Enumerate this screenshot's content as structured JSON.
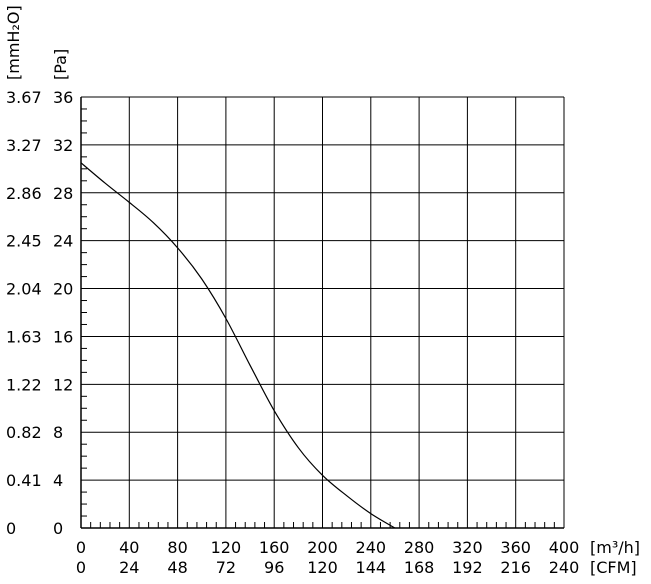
{
  "chart_data": {
    "type": "line",
    "title": "",
    "x_axes": [
      {
        "name": "flow-m3h",
        "unit_label": "[m³/h]",
        "range": [
          0,
          400
        ],
        "ticks": [
          "0",
          "40",
          "80",
          "120",
          "160",
          "200",
          "240",
          "280",
          "320",
          "360",
          "400"
        ]
      },
      {
        "name": "flow-cfm",
        "unit_label": "[CFM]",
        "range": [
          0,
          240
        ],
        "ticks": [
          "0",
          "24",
          "48",
          "72",
          "96",
          "120",
          "144",
          "168",
          "192",
          "216",
          "240"
        ]
      }
    ],
    "y_axes": [
      {
        "name": "pressure-mmh2o",
        "unit_label": "[mmH₂O]",
        "range": [
          0,
          3.67
        ],
        "ticks": [
          "0",
          "0.41",
          "0.82",
          "1.22",
          "1.63",
          "2.04",
          "2.45",
          "2.86",
          "3.27",
          "3.67"
        ]
      },
      {
        "name": "pressure-pa",
        "unit_label": "[Pa]",
        "range": [
          0,
          36
        ],
        "ticks": [
          "0",
          "4",
          "8",
          "12",
          "16",
          "20",
          "24",
          "28",
          "32",
          "36"
        ]
      }
    ],
    "grid": true,
    "series": [
      {
        "x": [
          0,
          20,
          40,
          60,
          80,
          100,
          120,
          140,
          160,
          180,
          200,
          220,
          240,
          260
        ],
        "y": [
          30.5,
          28.8,
          27.2,
          25.5,
          23.4,
          20.8,
          17.5,
          13.6,
          9.8,
          6.7,
          4.4,
          2.7,
          1.2,
          0
        ]
      }
    ]
  }
}
